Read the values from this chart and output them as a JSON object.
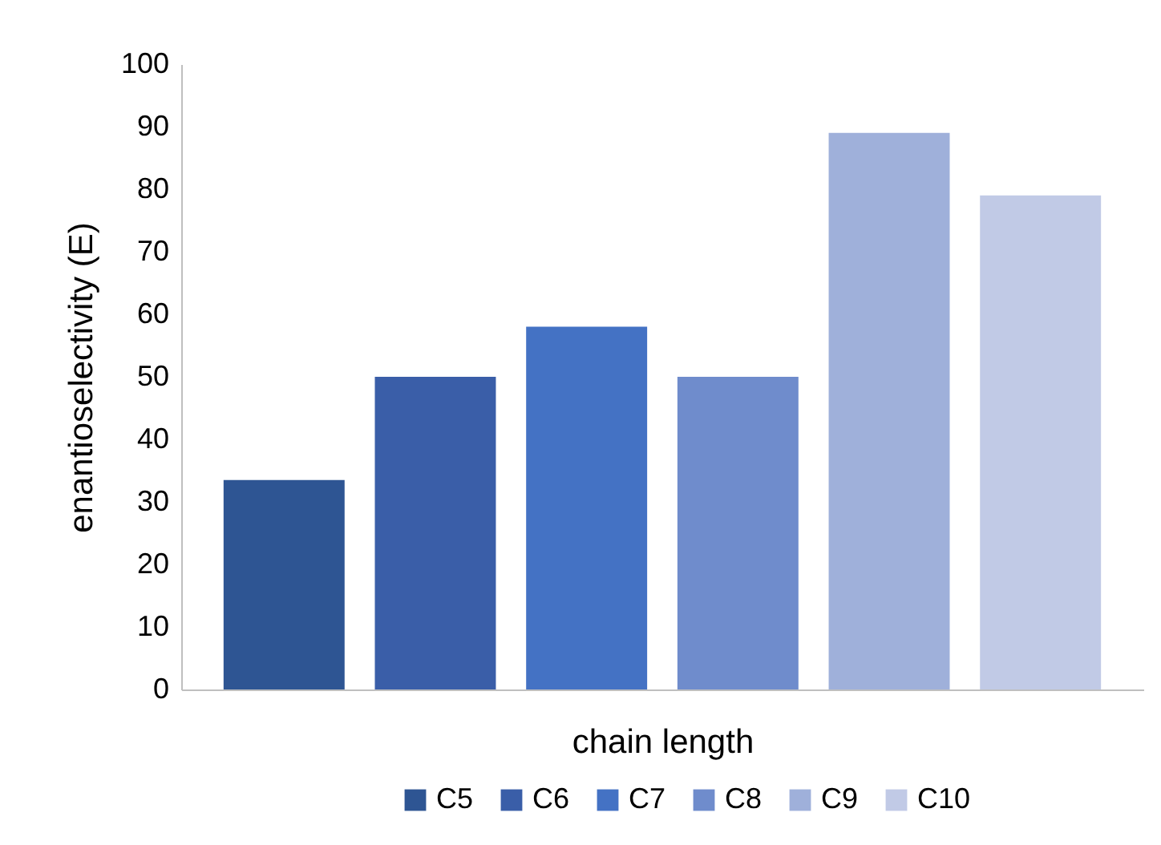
{
  "chart_data": {
    "type": "bar",
    "xlabel": "chain length",
    "ylabel": "enantioselectivity (E)",
    "categories": [
      null
    ],
    "series": [
      {
        "name": "C5",
        "color": "#2e5593",
        "values": [
          33.5
        ]
      },
      {
        "name": "C6",
        "color": "#3a5ea8",
        "values": [
          50
        ]
      },
      {
        "name": "C7",
        "color": "#4472c4",
        "values": [
          58
        ]
      },
      {
        "name": "C8",
        "color": "#6f8ccc",
        "values": [
          50
        ]
      },
      {
        "name": "C9",
        "color": "#9fb0da",
        "values": [
          89
        ]
      },
      {
        "name": "C10",
        "color": "#c1cae6",
        "values": [
          79
        ]
      }
    ],
    "ylim": [
      0,
      100
    ],
    "yticks": [
      0,
      10,
      20,
      30,
      40,
      50,
      60,
      70,
      80,
      90,
      100
    ],
    "grid": false,
    "legend": "bottom"
  }
}
